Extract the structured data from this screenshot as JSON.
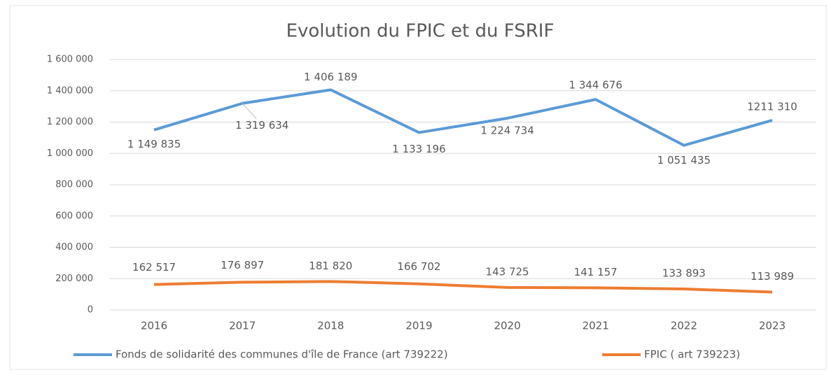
{
  "chart_data": {
    "type": "line",
    "title": "Evolution du FPIC et du FSRIF",
    "categories": [
      "2016",
      "2017",
      "2018",
      "2019",
      "2020",
      "2021",
      "2022",
      "2023"
    ],
    "series": [
      {
        "name": "Fonds de solidarité des communes d'île de France (art 739222)",
        "color": "#5b9bd5",
        "values": [
          1149835,
          1319634,
          1406189,
          1133196,
          1224734,
          1344676,
          1051435,
          1211310
        ],
        "value_labels": [
          "1 149 835",
          "1 319 634",
          "1 406 189",
          "1 133 196",
          "1 224 734",
          "1 344 676",
          "1 051 435",
          "1211 310"
        ]
      },
      {
        "name": "FPIC ( art 739223)",
        "color": "#ed7d31",
        "values": [
          162517,
          176897,
          181820,
          166702,
          143725,
          141157,
          133893,
          113989
        ],
        "value_labels": [
          "162 517",
          "176 897",
          "181 820",
          "166 702",
          "143 725",
          "141 157",
          "133 893",
          "113 989"
        ]
      }
    ],
    "ylim": [
      0,
      1600000
    ],
    "yticks": [
      0,
      {
        "value": 200000,
        "label": "200 000"
      },
      {
        "value": 400000,
        "label": "400 000"
      },
      {
        "value": 600000,
        "label": "600 000"
      },
      {
        "value": 800000,
        "label": "800 000"
      },
      {
        "value": 1000000,
        "label": "1 000 000"
      },
      {
        "value": 1200000,
        "label": "1 200 000"
      },
      {
        "value": 1400000,
        "label": "1 400 000"
      },
      {
        "value": 1600000,
        "label": "1 600 000"
      }
    ],
    "grid": true,
    "legend": "bottom"
  }
}
